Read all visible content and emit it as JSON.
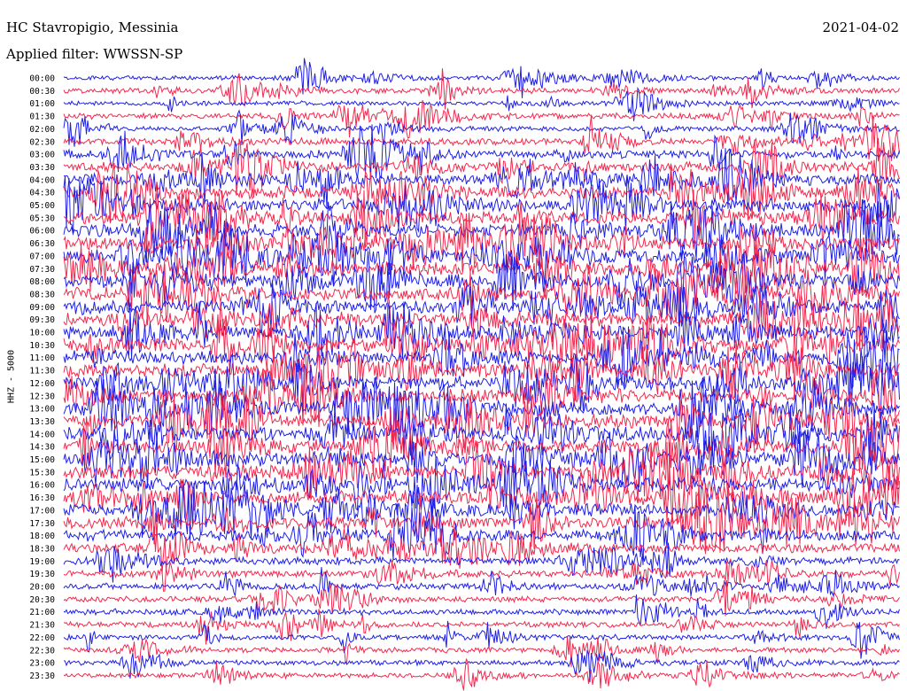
{
  "header": {
    "station": "HC Stavropigio, Messinia",
    "filter": "Applied filter: WWSSN-SP",
    "date": "2021-04-02"
  },
  "channel": "HHZ - 5000",
  "colors": {
    "trace_a": "#1f1fe6",
    "trace_b": "#f2294f",
    "text": "#000000",
    "background": "#ffffff"
  },
  "chart_data": {
    "type": "line",
    "title": "HC Stavropigio, Messinia",
    "subtitle": "Applied filter: WWSSN-SP",
    "ylabel": "HHZ - 5000",
    "row_labels": [
      "00:00",
      "00:30",
      "01:00",
      "01:30",
      "02:00",
      "02:30",
      "03:00",
      "03:30",
      "04:00",
      "04:30",
      "05:00",
      "05:30",
      "06:00",
      "06:30",
      "07:00",
      "07:30",
      "08:00",
      "08:30",
      "09:00",
      "09:30",
      "10:00",
      "10:30",
      "11:00",
      "11:30",
      "12:00",
      "12:30",
      "13:00",
      "13:30",
      "14:00",
      "14:30",
      "15:00",
      "15:30",
      "16:00",
      "16:30",
      "17:00",
      "17:30",
      "18:00",
      "18:30",
      "19:00",
      "19:30",
      "20:00",
      "20:30",
      "21:00",
      "21:30",
      "22:00",
      "22:30",
      "23:00",
      "23:30"
    ],
    "row_intensity": [
      0.25,
      0.35,
      0.25,
      0.35,
      0.3,
      0.45,
      0.55,
      0.7,
      0.85,
      0.9,
      0.95,
      1.0,
      1.0,
      1.0,
      1.0,
      1.0,
      1.0,
      1.0,
      1.0,
      1.0,
      1.0,
      1.0,
      1.0,
      1.0,
      1.0,
      1.0,
      1.0,
      1.0,
      1.0,
      1.0,
      1.0,
      1.0,
      1.0,
      1.0,
      0.95,
      0.9,
      0.8,
      0.65,
      0.5,
      0.45,
      0.4,
      0.35,
      0.35,
      0.35,
      0.3,
      0.3,
      0.3,
      0.3
    ],
    "series": [
      {
        "color": "#1f1fe6"
      },
      {
        "color": "#f2294f"
      }
    ]
  }
}
